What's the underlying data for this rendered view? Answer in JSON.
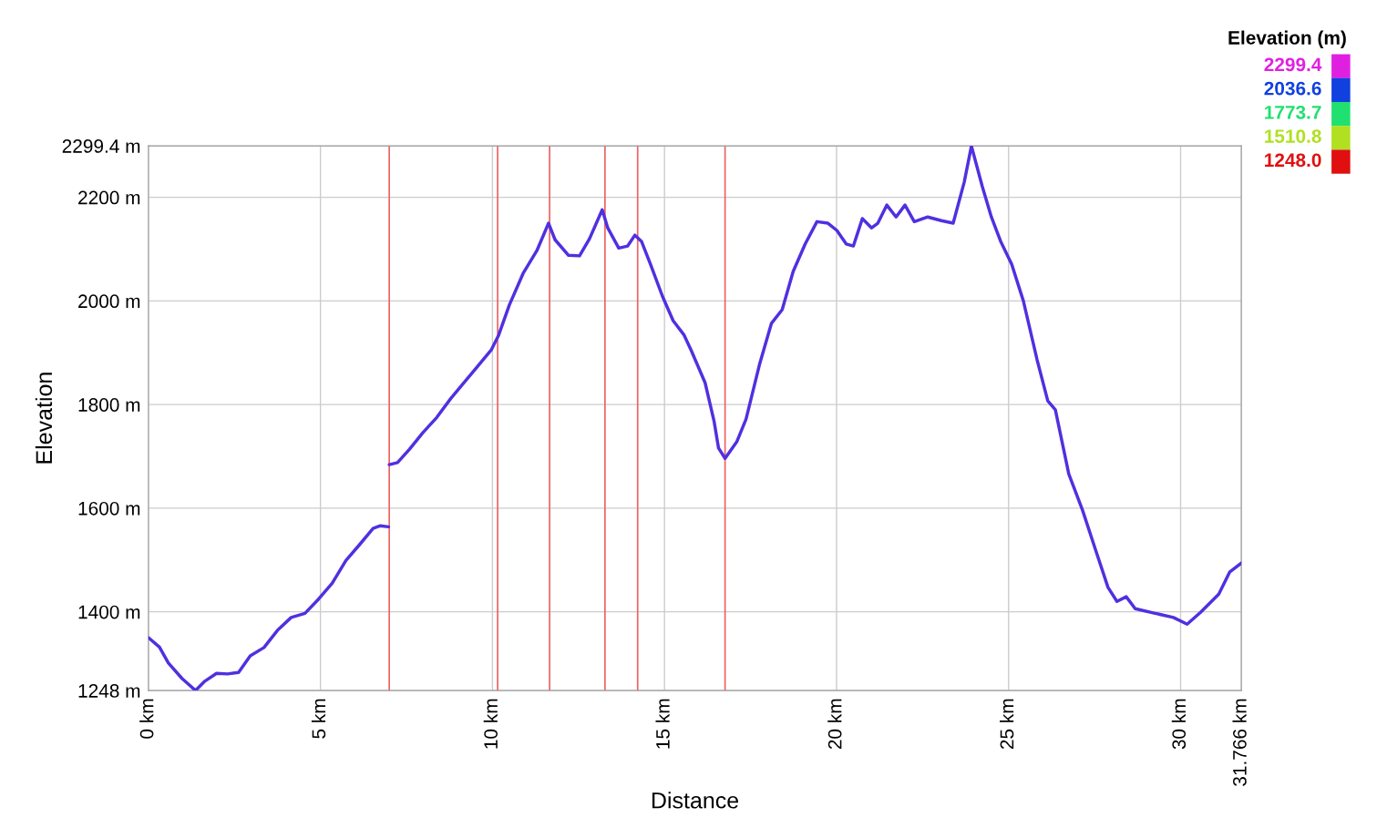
{
  "chart_data": {
    "type": "line",
    "xlabel": "Distance",
    "ylabel": "Elevation",
    "clabel": "Elevation (m)",
    "xlim": [
      0,
      31.766
    ],
    "ylim": [
      1248,
      2299.4
    ],
    "xticks": [
      {
        "value": 0,
        "label": "0 km"
      },
      {
        "value": 5,
        "label": "5 km"
      },
      {
        "value": 10,
        "label": "10 km"
      },
      {
        "value": 15,
        "label": "15 km"
      },
      {
        "value": 20,
        "label": "20 km"
      },
      {
        "value": 25,
        "label": "25 km"
      },
      {
        "value": 30,
        "label": "30 km"
      },
      {
        "value": 31.766,
        "label": "31.766 km"
      }
    ],
    "yticks": [
      {
        "value": 1248,
        "label": "1248 m"
      },
      {
        "value": 1400,
        "label": "1400 m"
      },
      {
        "value": 1600,
        "label": "1600 m"
      },
      {
        "value": 1800,
        "label": "1800 m"
      },
      {
        "value": 2000,
        "label": "2000 m"
      },
      {
        "value": 2200,
        "label": "2200 m"
      },
      {
        "value": 2299.4,
        "label": "2299.4 m"
      }
    ],
    "cticks": [
      {
        "value": 2299.4,
        "label": "2299.4"
      },
      {
        "value": 2036.6,
        "label": "2036.6"
      },
      {
        "value": 1773.7,
        "label": "1773.7"
      },
      {
        "value": 1510.8,
        "label": "1510.8"
      },
      {
        "value": 1248.0,
        "label": "1248.0"
      }
    ],
    "colors": [
      "#e020e0",
      "#1040e0",
      "#20e070",
      "#b0e020",
      "#e01010"
    ],
    "grid": true,
    "ref_lines": [
      {
        "axis": "x",
        "value": 7.0,
        "color": "#f06060"
      },
      {
        "axis": "x",
        "value": 10.15,
        "color": "#f06060"
      },
      {
        "axis": "x",
        "value": 11.66,
        "color": "#f06060"
      },
      {
        "axis": "x",
        "value": 13.27,
        "color": "#f06060"
      },
      {
        "axis": "x",
        "value": 14.22,
        "color": "#f06060"
      },
      {
        "axis": "x",
        "value": 16.76,
        "color": "#f06060"
      }
    ],
    "x": [
      0,
      0.32,
      0.58,
      0.98,
      1.37,
      1.64,
      1.98,
      2.3,
      2.62,
      2.96,
      3.36,
      3.75,
      4.15,
      4.55,
      4.94,
      5.34,
      5.74,
      6.13,
      6.53,
      6.74,
      6.98,
      6.99,
      7.0,
      7.24,
      7.59,
      7.98,
      8.38,
      8.78,
      9.17,
      9.57,
      9.97,
      10.18,
      10.49,
      10.89,
      11.29,
      11.63,
      11.82,
      12.21,
      12.53,
      12.82,
      13.19,
      13.35,
      13.67,
      13.93,
      14.14,
      14.33,
      14.59,
      14.94,
      15.25,
      15.57,
      15.78,
      16.18,
      16.44,
      16.57,
      16.76,
      17.1,
      17.37,
      17.76,
      18.11,
      18.42,
      18.74,
      19.09,
      19.43,
      19.75,
      20.01,
      20.28,
      20.49,
      20.75,
      21.02,
      21.2,
      21.46,
      21.73,
      21.99,
      22.26,
      22.65,
      23.05,
      23.39,
      23.71,
      23.92,
      24.24,
      24.5,
      24.77,
      25.09,
      25.43,
      25.83,
      26.14,
      26.36,
      26.75,
      27.15,
      27.54,
      27.89,
      28.15,
      28.42,
      28.68,
      29.26,
      29.79,
      30.19,
      30.58,
      31.11,
      31.43,
      31.766
    ],
    "series": [
      {
        "color": "#5030e0",
        "values": [
          1350,
          1332,
          1301,
          1271,
          1248,
          1266,
          1281,
          1280,
          1283,
          1315,
          1331,
          1364,
          1389,
          1397,
          1424,
          1455,
          1499,
          1529,
          1561,
          1566,
          1564,
          null,
          1684,
          1688,
          1714,
          1746,
          1775,
          1811,
          1842,
          1874,
          1906,
          1934,
          1992,
          2053,
          2097,
          2150,
          2118,
          2088,
          2087,
          2120,
          2176,
          2141,
          2102,
          2106,
          2127,
          2115,
          2071,
          2009,
          1962,
          1934,
          1904,
          1842,
          1768,
          1716,
          1696,
          1728,
          1772,
          1877,
          1957,
          1983,
          2057,
          2110,
          2153,
          2150,
          2136,
          2110,
          2106,
          2159,
          2141,
          2150,
          2185,
          2162,
          2185,
          2153,
          2162,
          2155,
          2150,
          2229,
          2299,
          2220,
          2162,
          2115,
          2071,
          2000,
          1886,
          1807,
          1790,
          1666,
          1596,
          1517,
          1447,
          1420,
          1429,
          1406,
          1397,
          1389,
          1376,
          1399,
          1434,
          1477,
          1494
        ]
      }
    ]
  }
}
